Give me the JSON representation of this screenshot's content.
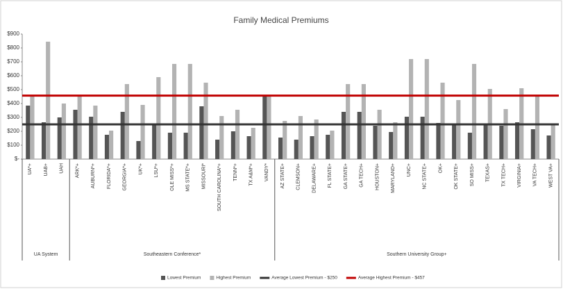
{
  "chart_data": {
    "type": "bar",
    "title": "Family Medical Premiums",
    "category_groups": [
      {
        "label": "UA System",
        "categories": [
          "UA*+",
          "UAB+",
          "UAH"
        ]
      },
      {
        "label": "Southeastern Conference*",
        "categories": [
          "ARK*+",
          "AUBURN*+",
          "FLORIDA*+",
          "GEORGIA*+",
          "UK*+",
          "LSU*+",
          "OLE MISS*+",
          "MS STATE*+",
          "MISSOURI*",
          "SOUTH CAROLINA*+",
          "TENN*+",
          "TX A&M*+",
          "VANDY*"
        ]
      },
      {
        "label": "Southern University Group+",
        "categories": [
          "AZ STATE+",
          "CLEMSON+",
          "DELAWARE+",
          "FL STATE+",
          "GA STATE+",
          "GA TECH+",
          "HOUSTON+",
          "MARYLAND+",
          "UNC+",
          "NC STATE+",
          "OK+",
          "OK STATE+",
          "SO MISS+",
          "TEXAS+",
          "TX TECH+",
          "VIRGINIA+",
          "VA TECH+",
          "WEST VA+"
        ]
      }
    ],
    "series": [
      {
        "name": "Lowest Premium",
        "color": "#555555",
        "values": [
          385,
          265,
          300,
          355,
          305,
          175,
          340,
          130,
          250,
          190,
          190,
          380,
          140,
          200,
          165,
          460,
          155,
          140,
          165,
          175,
          340,
          340,
          240,
          195,
          305,
          305,
          260,
          250,
          190,
          250,
          240,
          265,
          215,
          170
        ]
      },
      {
        "name": "Highest Premium",
        "color": "#b3b3b3",
        "values": [
          450,
          845,
          400,
          460,
          385,
          205,
          540,
          390,
          590,
          685,
          685,
          550,
          310,
          355,
          225,
          460,
          275,
          310,
          285,
          205,
          540,
          540,
          355,
          265,
          720,
          720,
          550,
          425,
          685,
          505,
          360,
          510,
          455,
          255
        ]
      }
    ],
    "reference_lines": [
      {
        "name": "Average Lowest Premium - $250",
        "color": "#333333",
        "value": 250
      },
      {
        "name": "Average Highest Premium - $457",
        "color": "#c00000",
        "value": 457
      }
    ],
    "ylim": [
      0,
      900
    ],
    "yticks": [
      {
        "value": 0,
        "label": "$-"
      },
      {
        "value": 100,
        "label": "$100"
      },
      {
        "value": 200,
        "label": "$200"
      },
      {
        "value": 300,
        "label": "$300"
      },
      {
        "value": 400,
        "label": "$400"
      },
      {
        "value": 500,
        "label": "$500"
      },
      {
        "value": 600,
        "label": "$600"
      },
      {
        "value": 700,
        "label": "$700"
      },
      {
        "value": 800,
        "label": "$800"
      },
      {
        "value": 900,
        "label": "$900"
      }
    ],
    "legend": "bottom"
  }
}
